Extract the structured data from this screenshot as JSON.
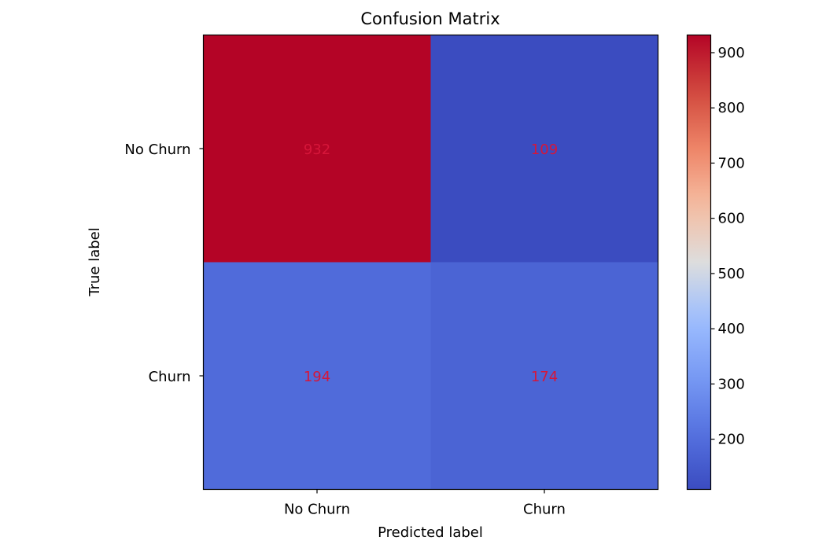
{
  "chart_data": {
    "type": "heatmap",
    "title": "Confusion Matrix",
    "xlabel": "Predicted label",
    "ylabel": "True label",
    "x_categories": [
      "No Churn",
      "Churn"
    ],
    "y_categories": [
      "No Churn",
      "Churn"
    ],
    "values": [
      [
        932,
        109
      ],
      [
        194,
        174
      ]
    ],
    "colormap": "coolwarm",
    "annotation_color": "#d6163a",
    "colorbar": {
      "range": [
        109,
        932
      ],
      "ticks": [
        200,
        300,
        400,
        500,
        600,
        700,
        800,
        900
      ]
    }
  }
}
